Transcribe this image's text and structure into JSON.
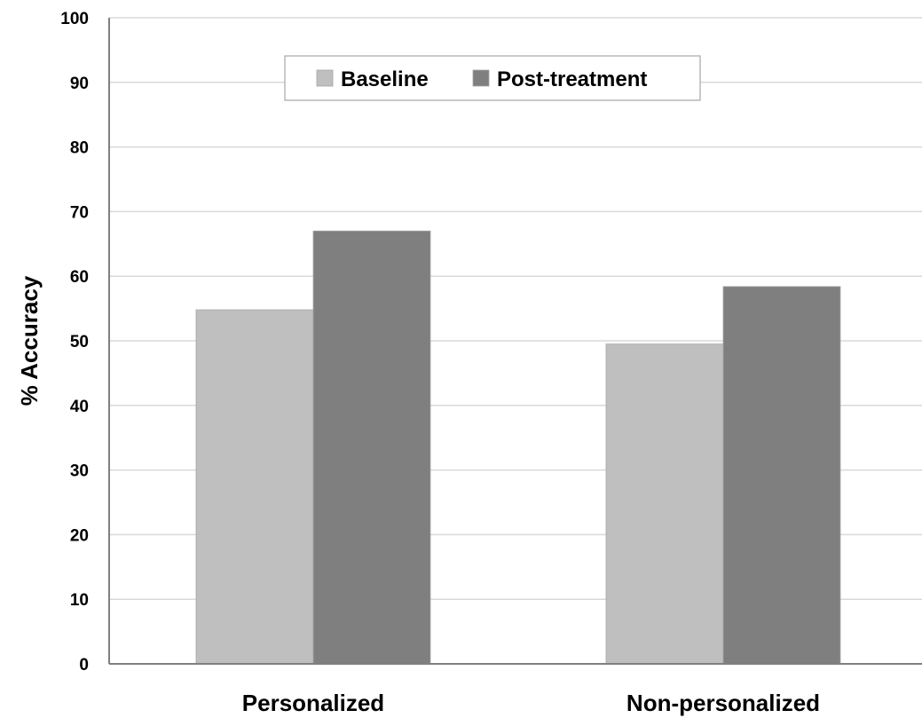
{
  "chart_data": {
    "type": "bar",
    "categories": [
      "Personalized",
      "Non-personalized"
    ],
    "series": [
      {
        "name": "Baseline",
        "values": [
          54.8,
          49.5
        ],
        "color": "#bfbfbf"
      },
      {
        "name": "Post-treatment",
        "values": [
          67,
          58.4
        ],
        "color": "#7f7f7f"
      }
    ],
    "xlabel": "",
    "ylabel": "% Accuracy",
    "ylim": [
      0,
      100
    ],
    "yticks": [
      0,
      10,
      20,
      30,
      40,
      50,
      60,
      70,
      80,
      90,
      100
    ],
    "grid": true,
    "gridline_color": "#d9d9d9",
    "axis_color": "#808080",
    "legend_position": "top-center"
  }
}
